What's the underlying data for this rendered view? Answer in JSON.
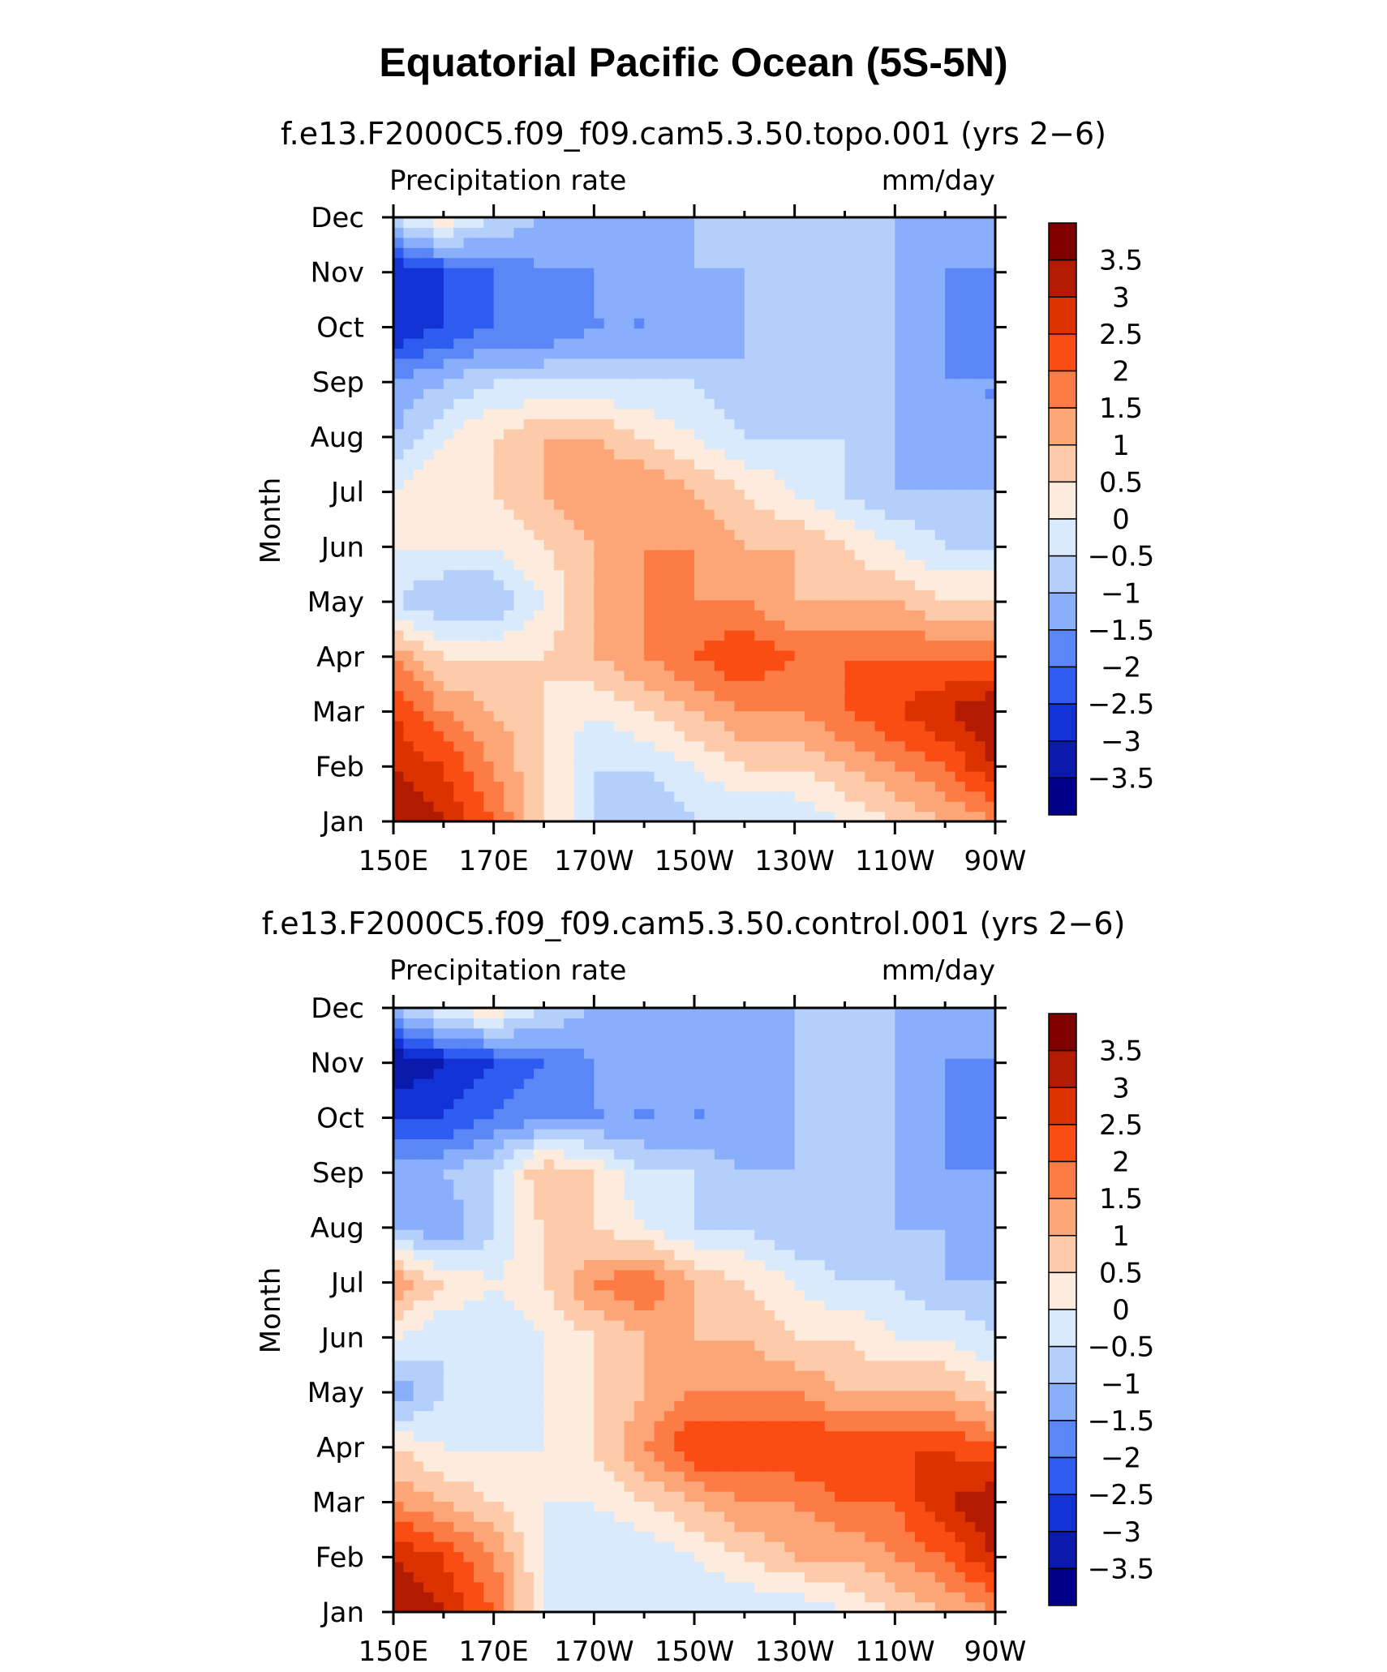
{
  "title": "Equatorial Pacific Ocean (5S-5N)",
  "chart_data": [
    {
      "type": "heatmap",
      "subtitle": "f.e13.F2000C5.f09_f09.cam5.3.50.topo.001 (yrs 2−6)",
      "left_string": "Precipitation rate",
      "right_string": "mm/day",
      "ylabel": "Month",
      "xlabel": "",
      "x_ticks": [
        "150E",
        "170E",
        "170W",
        "150W",
        "130W",
        "110W",
        "90W"
      ],
      "y_ticks": [
        "Jan",
        "Feb",
        "Mar",
        "Apr",
        "May",
        "Jun",
        "Jul",
        "Aug",
        "Sep",
        "Oct",
        "Nov",
        "Dec"
      ],
      "x_lon": [
        150,
        160,
        170,
        180,
        190,
        200,
        210,
        220,
        230,
        240,
        250,
        260,
        270
      ],
      "z": [
        [
          3.5,
          3.0,
          2.0,
          0.5,
          -0.5,
          -1.0,
          -0.5,
          -0.5,
          -0.5,
          0.0,
          0.5,
          1.0,
          1.5
        ],
        [
          3.0,
          2.5,
          1.5,
          0.5,
          -0.5,
          -0.5,
          0.0,
          0.5,
          0.5,
          1.0,
          1.5,
          2.0,
          3.0
        ],
        [
          2.5,
          1.5,
          1.0,
          0.5,
          0.0,
          0.5,
          1.0,
          1.5,
          1.5,
          2.0,
          2.5,
          3.0,
          3.5
        ],
        [
          1.5,
          0.5,
          0.5,
          0.5,
          1.0,
          1.5,
          2.0,
          2.5,
          2.0,
          2.0,
          2.0,
          2.0,
          2.0
        ],
        [
          -0.5,
          -1.0,
          -1.0,
          0.0,
          1.0,
          1.5,
          1.5,
          1.5,
          1.0,
          1.0,
          1.0,
          0.5,
          0.5
        ],
        [
          0.0,
          0.0,
          0.0,
          0.5,
          1.0,
          1.5,
          1.5,
          1.0,
          1.0,
          0.5,
          0.0,
          -0.5,
          -0.5
        ],
        [
          0.0,
          0.5,
          0.5,
          1.0,
          1.5,
          1.5,
          1.0,
          0.5,
          0.0,
          -0.5,
          -1.0,
          -1.0,
          -1.0
        ],
        [
          -1.0,
          0.0,
          0.5,
          1.0,
          1.0,
          0.5,
          0.0,
          -0.5,
          -0.5,
          -0.5,
          -1.0,
          -1.5,
          -1.5
        ],
        [
          -1.5,
          -1.0,
          -0.5,
          -0.5,
          -0.5,
          -0.5,
          -0.5,
          -1.0,
          -1.0,
          -1.0,
          -1.0,
          -1.5,
          -1.5
        ],
        [
          -3.0,
          -2.5,
          -2.0,
          -2.0,
          -1.5,
          -1.5,
          -1.5,
          -1.0,
          -1.0,
          -1.0,
          -1.0,
          -1.5,
          -2.0
        ],
        [
          -3.0,
          -2.5,
          -2.0,
          -1.5,
          -1.5,
          -1.5,
          -1.0,
          -1.0,
          -1.0,
          -1.0,
          -1.0,
          -1.5,
          -1.5
        ],
        [
          -0.5,
          0.5,
          -0.5,
          -1.0,
          -1.0,
          -1.0,
          -1.0,
          -1.0,
          -1.0,
          -1.0,
          -1.0,
          -1.0,
          -1.0
        ]
      ]
    },
    {
      "type": "heatmap",
      "subtitle": "f.e13.F2000C5.f09_f09.cam5.3.50.control.001 (yrs 2−6)",
      "left_string": "Precipitation rate",
      "right_string": "mm/day",
      "ylabel": "Month",
      "xlabel": "",
      "x_ticks": [
        "150E",
        "170E",
        "170W",
        "150W",
        "130W",
        "110W",
        "90W"
      ],
      "y_ticks": [
        "Jan",
        "Feb",
        "Mar",
        "Apr",
        "May",
        "Jun",
        "Jul",
        "Aug",
        "Sep",
        "Oct",
        "Nov",
        "Dec"
      ],
      "x_lon": [
        150,
        160,
        170,
        180,
        190,
        200,
        210,
        220,
        230,
        240,
        250,
        260,
        270
      ],
      "z": [
        [
          3.5,
          3.0,
          2.0,
          0.0,
          -0.5,
          -0.5,
          -0.5,
          -0.5,
          -0.5,
          0.0,
          0.5,
          1.0,
          1.5
        ],
        [
          3.0,
          2.5,
          1.5,
          0.0,
          -0.5,
          -0.5,
          0.0,
          0.5,
          1.0,
          1.0,
          1.5,
          2.0,
          3.0
        ],
        [
          1.5,
          1.0,
          0.5,
          0.0,
          0.0,
          0.5,
          1.0,
          1.5,
          1.5,
          2.0,
          2.0,
          3.0,
          3.5
        ],
        [
          0.5,
          0.0,
          0.0,
          0.0,
          0.5,
          1.5,
          2.5,
          2.5,
          2.5,
          2.5,
          2.5,
          2.5,
          2.0
        ],
        [
          -1.5,
          -0.5,
          -0.5,
          0.0,
          0.5,
          1.0,
          1.5,
          1.5,
          1.5,
          1.0,
          1.0,
          1.0,
          0.5
        ],
        [
          0.0,
          -0.5,
          -0.5,
          0.0,
          0.5,
          1.0,
          1.0,
          1.0,
          0.5,
          0.5,
          0.0,
          0.0,
          -0.5
        ],
        [
          1.5,
          0.5,
          0.0,
          0.5,
          1.5,
          2.0,
          1.0,
          0.5,
          0.0,
          -0.5,
          -0.5,
          -1.0,
          -1.0
        ],
        [
          -1.0,
          -1.5,
          -0.5,
          0.5,
          0.5,
          0.0,
          -0.5,
          -0.5,
          -1.0,
          -1.0,
          -1.0,
          -1.0,
          -1.5
        ],
        [
          -1.0,
          -1.0,
          -0.5,
          1.0,
          0.5,
          -0.5,
          -0.5,
          -1.0,
          -1.0,
          -1.0,
          -1.0,
          -1.5,
          -1.5
        ],
        [
          -2.5,
          -2.5,
          -2.0,
          -1.5,
          -1.5,
          -1.5,
          -1.5,
          -1.5,
          -1.0,
          -1.0,
          -1.0,
          -1.5,
          -2.0
        ],
        [
          -3.5,
          -3.0,
          -2.5,
          -2.0,
          -1.5,
          -1.5,
          -1.5,
          -1.5,
          -1.0,
          -1.0,
          -1.0,
          -1.5,
          -1.5
        ],
        [
          -1.0,
          0.0,
          0.5,
          -0.5,
          -1.0,
          -1.0,
          -1.0,
          -1.0,
          -1.0,
          -1.0,
          -1.0,
          -1.0,
          -1.0
        ]
      ]
    }
  ],
  "colorbar": {
    "labels": [
      "3.5",
      "3",
      "2.5",
      "2",
      "1.5",
      "1",
      "0.5",
      "0",
      "−0.5",
      "−1",
      "−1.5",
      "−2",
      "−2.5",
      "−3",
      "−3.5"
    ],
    "boundaries": [
      3.5,
      3.0,
      2.5,
      2.0,
      1.5,
      1.0,
      0.5,
      0.0,
      -0.5,
      -1.0,
      -1.5,
      -2.0,
      -2.5,
      -3.0,
      -3.5
    ],
    "colors": [
      "#800000",
      "#b31b00",
      "#dc3200",
      "#fa4d14",
      "#fd7c45",
      "#fca678",
      "#fdcbaa",
      "#fdebdd",
      "#d8eafb",
      "#b5cffc",
      "#88aefc",
      "#5a87f5",
      "#2e5cf0",
      "#1232d6",
      "#0a1aac",
      "#00008b"
    ]
  }
}
